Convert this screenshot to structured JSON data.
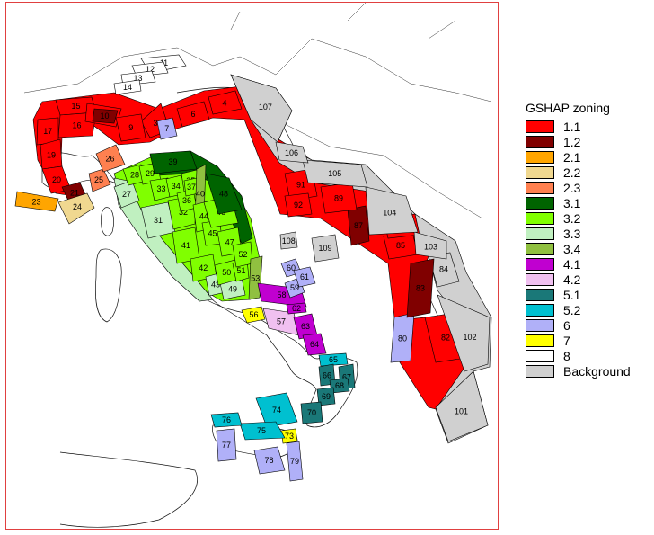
{
  "legend": {
    "title": "GSHAP zoning",
    "items": [
      {
        "label": "1.1",
        "color": "#ff0000"
      },
      {
        "label": "1.2",
        "color": "#800000"
      },
      {
        "label": "2.1",
        "color": "#ffa500"
      },
      {
        "label": "2.2",
        "color": "#f0d890"
      },
      {
        "label": "2.3",
        "color": "#ff8050"
      },
      {
        "label": "3.1",
        "color": "#006400"
      },
      {
        "label": "3.2",
        "color": "#80ff00"
      },
      {
        "label": "3.3",
        "color": "#c0f0c0"
      },
      {
        "label": "3.4",
        "color": "#90c040"
      },
      {
        "label": "4.1",
        "color": "#c000d0"
      },
      {
        "label": "4.2",
        "color": "#f0c0f0"
      },
      {
        "label": "5.1",
        "color": "#1a7878"
      },
      {
        "label": "5.2",
        "color": "#00c0d0"
      },
      {
        "label": "6",
        "color": "#b0b0f8"
      },
      {
        "label": "7",
        "color": "#ffff00"
      },
      {
        "label": "8",
        "color": "#ffffff"
      },
      {
        "label": "Background",
        "color": "#d0d0d0"
      }
    ]
  },
  "zones": [
    {
      "id": "11",
      "cls": "8"
    },
    {
      "id": "12",
      "cls": "8"
    },
    {
      "id": "13",
      "cls": "8"
    },
    {
      "id": "14",
      "cls": "8"
    },
    {
      "id": "15",
      "cls": "1.1"
    },
    {
      "id": "16",
      "cls": "1.1"
    },
    {
      "id": "17",
      "cls": "1.1"
    },
    {
      "id": "18",
      "cls": "1.1"
    },
    {
      "id": "19",
      "cls": "1.1"
    },
    {
      "id": "20",
      "cls": "1.1"
    },
    {
      "id": "21",
      "cls": "1.2"
    },
    {
      "id": "23",
      "cls": "2.1"
    },
    {
      "id": "24",
      "cls": "2.2"
    },
    {
      "id": "25",
      "cls": "2.3"
    },
    {
      "id": "26",
      "cls": "2.3"
    },
    {
      "id": "27",
      "cls": "3.3"
    },
    {
      "id": "28",
      "cls": "3.2"
    },
    {
      "id": "29",
      "cls": "3.2"
    },
    {
      "id": "31",
      "cls": "3.3"
    },
    {
      "id": "32",
      "cls": "3.2"
    },
    {
      "id": "33",
      "cls": "3.2"
    },
    {
      "id": "34",
      "cls": "3.2"
    },
    {
      "id": "35",
      "cls": "3.2"
    },
    {
      "id": "36",
      "cls": "3.2"
    },
    {
      "id": "37",
      "cls": "3.2"
    },
    {
      "id": "39",
      "cls": "3.1"
    },
    {
      "id": "40",
      "cls": "3.4"
    },
    {
      "id": "41",
      "cls": "3.2"
    },
    {
      "id": "42",
      "cls": "3.2"
    },
    {
      "id": "43",
      "cls": "3.3"
    },
    {
      "id": "44",
      "cls": "3.2"
    },
    {
      "id": "45",
      "cls": "3.2"
    },
    {
      "id": "46",
      "cls": "3.2"
    },
    {
      "id": "47",
      "cls": "3.2"
    },
    {
      "id": "48",
      "cls": "3.1"
    },
    {
      "id": "49",
      "cls": "3.3"
    },
    {
      "id": "50",
      "cls": "3.2"
    },
    {
      "id": "51",
      "cls": "3.2"
    },
    {
      "id": "52",
      "cls": "3.2"
    },
    {
      "id": "53",
      "cls": "3.4"
    },
    {
      "id": "56",
      "cls": "7"
    },
    {
      "id": "57",
      "cls": "4.2"
    },
    {
      "id": "58",
      "cls": "4.1"
    },
    {
      "id": "59",
      "cls": "6"
    },
    {
      "id": "60",
      "cls": "6"
    },
    {
      "id": "61",
      "cls": "6"
    },
    {
      "id": "62",
      "cls": "4.1"
    },
    {
      "id": "63",
      "cls": "4.1"
    },
    {
      "id": "64",
      "cls": "4.1"
    },
    {
      "id": "65",
      "cls": "5.2"
    },
    {
      "id": "66",
      "cls": "5.1"
    },
    {
      "id": "67",
      "cls": "5.1"
    },
    {
      "id": "68",
      "cls": "5.1"
    },
    {
      "id": "69",
      "cls": "5.1"
    },
    {
      "id": "70",
      "cls": "5.1"
    },
    {
      "id": "73",
      "cls": "7"
    },
    {
      "id": "74",
      "cls": "5.2"
    },
    {
      "id": "75",
      "cls": "5.2"
    },
    {
      "id": "76",
      "cls": "5.2"
    },
    {
      "id": "77",
      "cls": "6"
    },
    {
      "id": "78",
      "cls": "6"
    },
    {
      "id": "79",
      "cls": "6"
    },
    {
      "id": "80",
      "cls": "6"
    },
    {
      "id": "84",
      "cls": "Background"
    },
    {
      "id": "3",
      "cls": "1.1"
    },
    {
      "id": "4",
      "cls": "1.1"
    },
    {
      "id": "6",
      "cls": "1.1"
    },
    {
      "id": "7",
      "cls": "6"
    },
    {
      "id": "9",
      "cls": "1.1"
    },
    {
      "id": "10",
      "cls": "1.2"
    },
    {
      "id": "82",
      "cls": "1.1"
    },
    {
      "id": "83",
      "cls": "1.2"
    },
    {
      "id": "85",
      "cls": "1.1"
    },
    {
      "id": "86",
      "cls": "1.1"
    },
    {
      "id": "87",
      "cls": "1.2"
    },
    {
      "id": "89",
      "cls": "1.1"
    },
    {
      "id": "91",
      "cls": "1.1"
    },
    {
      "id": "92",
      "cls": "1.1"
    },
    {
      "id": "101",
      "cls": "Background"
    },
    {
      "id": "102",
      "cls": "Background"
    },
    {
      "id": "103",
      "cls": "Background"
    },
    {
      "id": "104",
      "cls": "Background"
    },
    {
      "id": "105",
      "cls": "Background"
    },
    {
      "id": "106",
      "cls": "Background"
    },
    {
      "id": "107",
      "cls": "Background"
    },
    {
      "id": "108",
      "cls": "Background"
    },
    {
      "id": "109",
      "cls": "Background"
    }
  ]
}
